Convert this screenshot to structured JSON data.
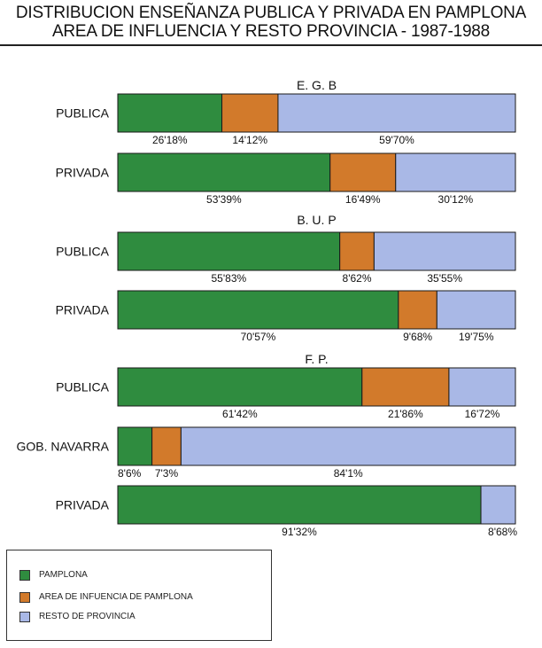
{
  "title_line1": "DISTRIBUCION ENSEÑANZA PUBLICA Y PRIVADA EN PAMPLONA",
  "title_line2": "AREA DE INFLUENCIA Y RESTO PROVINCIA - 1987-1988",
  "colors": {
    "pamplona": "#2f8c3f",
    "area": "#d27a2b",
    "resto": "#a9b8e6"
  },
  "legend": [
    {
      "key": "pamplona",
      "label": "PAMPLONA"
    },
    {
      "key": "area",
      "label": "AREA DE INFUENCIA DE PAMPLONA"
    },
    {
      "key": "resto",
      "label": "RESTO DE PROVINCIA"
    }
  ],
  "chart_data": {
    "type": "bar",
    "orientation": "horizontal",
    "stacked": true,
    "unit": "%",
    "xlim": [
      0,
      100
    ],
    "series": [
      "PAMPLONA",
      "AREA DE INFUENCIA DE PAMPLONA",
      "RESTO DE PROVINCIA"
    ],
    "groups": [
      {
        "name": "E. G. B",
        "bars": [
          {
            "label": "PUBLICA",
            "values": [
              26.18,
              14.12,
              59.7
            ],
            "value_labels": [
              "26'18%",
              "14'12%",
              "59'70%"
            ]
          },
          {
            "label": "PRIVADA",
            "values": [
              53.39,
              16.49,
              30.12
            ],
            "value_labels": [
              "53'39%",
              "16'49%",
              "30'12%"
            ]
          }
        ]
      },
      {
        "name": "B. U. P",
        "bars": [
          {
            "label": "PUBLICA",
            "values": [
              55.83,
              8.62,
              35.55
            ],
            "value_labels": [
              "55'83%",
              "8'62%",
              "35'55%"
            ]
          },
          {
            "label": "PRIVADA",
            "values": [
              70.57,
              9.68,
              19.75
            ],
            "value_labels": [
              "70'57%",
              "9'68%",
              "19'75%"
            ]
          }
        ]
      },
      {
        "name": "F. P.",
        "bars": [
          {
            "label": "PUBLICA",
            "values": [
              61.42,
              21.86,
              16.72
            ],
            "value_labels": [
              "61'42%",
              "21'86%",
              "16'72%"
            ]
          },
          {
            "label": "GOB. NAVARRA",
            "values": [
              8.6,
              7.3,
              84.1
            ],
            "value_labels": [
              "8'6%",
              "7'3%",
              "84'1%"
            ]
          },
          {
            "label": "PRIVADA",
            "values": [
              91.32,
              0,
              8.68
            ],
            "value_labels": [
              "91'32%",
              "",
              "8'68%"
            ]
          }
        ]
      }
    ]
  }
}
